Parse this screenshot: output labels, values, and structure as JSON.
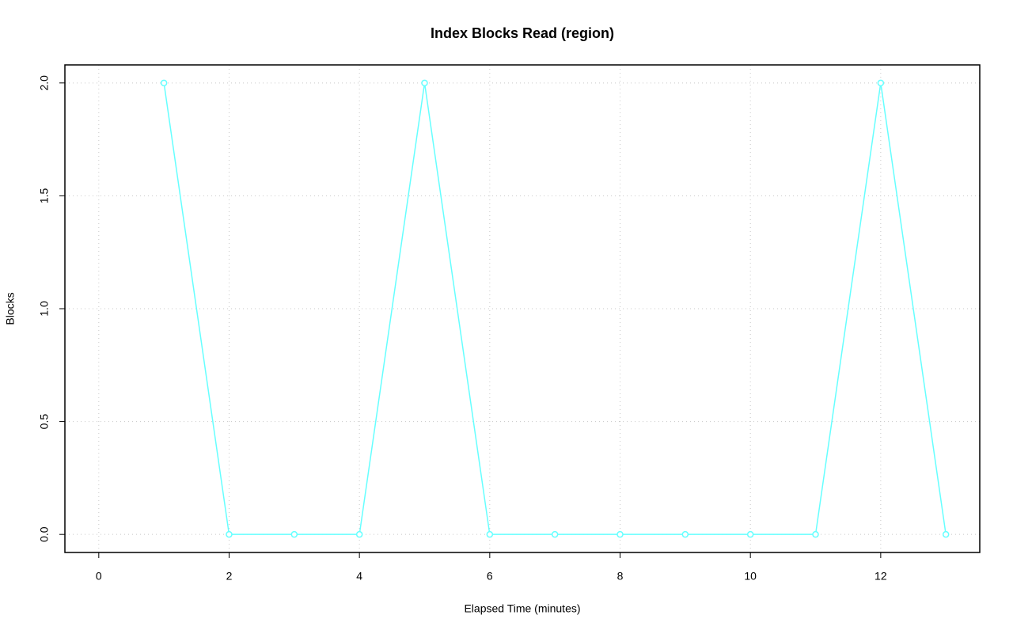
{
  "chart_data": {
    "type": "line",
    "title": "Index Blocks Read (region)",
    "x_label": "Elapsed Time (minutes)",
    "y_label": "Blocks",
    "x": [
      1,
      2,
      3,
      4,
      5,
      6,
      7,
      8,
      9,
      10,
      11,
      12,
      13
    ],
    "values": [
      2,
      0,
      0,
      0,
      2,
      0,
      0,
      0,
      0,
      0,
      0,
      2,
      0
    ],
    "color": "#66ffff",
    "xlim": [
      -0.52,
      13.52
    ],
    "xticks": [
      0,
      2,
      4,
      6,
      8,
      10,
      12
    ],
    "ylim": [
      -0.08,
      2.08
    ],
    "yticks": [
      {
        "value": 0,
        "label": "0.0"
      },
      {
        "value": 0.5,
        "label": "0.5"
      },
      {
        "value": 1,
        "label": "1.0"
      },
      {
        "value": 1.5,
        "label": "1.5"
      },
      {
        "value": 2,
        "label": "2.0"
      }
    ],
    "grid": true
  }
}
